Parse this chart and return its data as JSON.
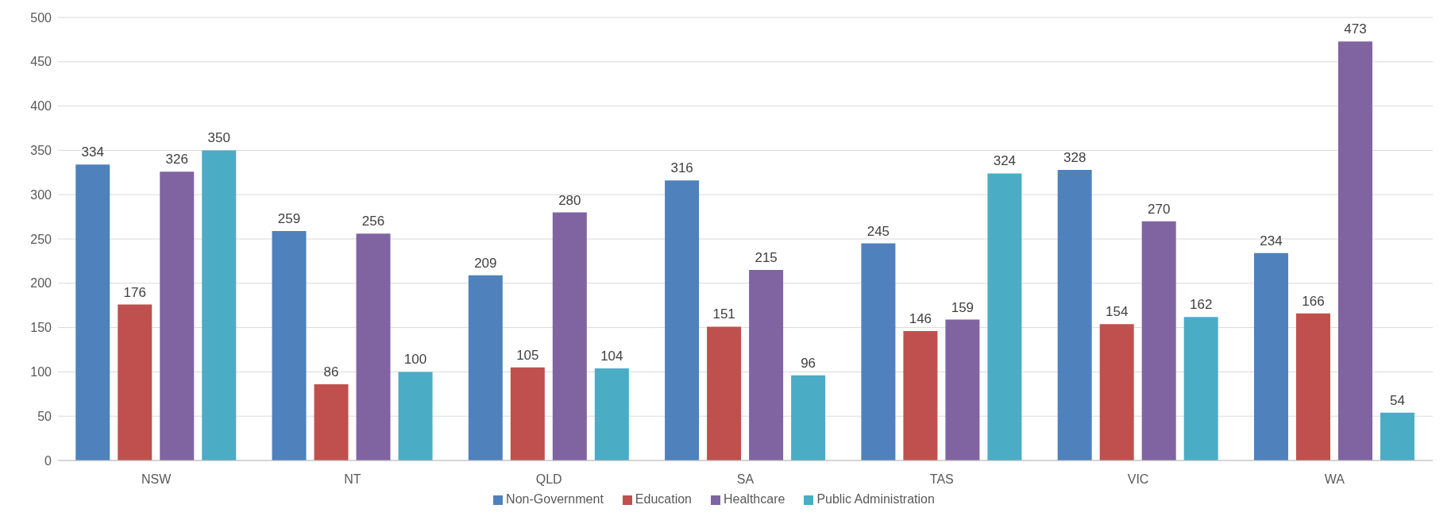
{
  "chart_data": {
    "type": "bar",
    "categories": [
      "NSW",
      "NT",
      "QLD",
      "SA",
      "TAS",
      "VIC",
      "WA"
    ],
    "series": [
      {
        "name": "Non-Government",
        "color": "#4f81bd",
        "values": [
          334,
          259,
          209,
          316,
          245,
          328,
          234
        ]
      },
      {
        "name": "Education",
        "color": "#c0504d",
        "values": [
          176,
          86,
          105,
          151,
          146,
          154,
          166
        ]
      },
      {
        "name": "Healthcare",
        "color": "#8064a2",
        "values": [
          326,
          256,
          280,
          215,
          159,
          270,
          473
        ]
      },
      {
        "name": "Public Administration",
        "color": "#4bacc6",
        "values": [
          350,
          100,
          104,
          96,
          324,
          162,
          54
        ]
      }
    ],
    "ylim": [
      0,
      500
    ],
    "yticks": [
      0,
      50,
      100,
      150,
      200,
      250,
      300,
      350,
      400,
      450,
      500
    ],
    "grid": "y",
    "legend": "bottom",
    "data_labels": true
  }
}
